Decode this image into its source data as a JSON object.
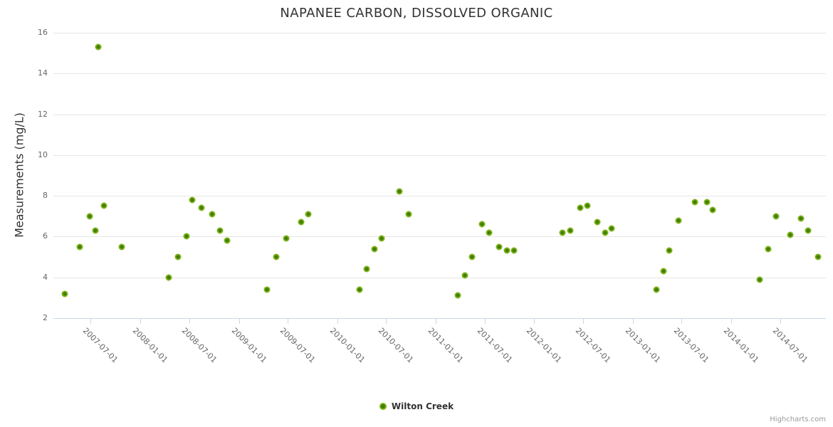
{
  "chart": {
    "title": "NAPANEE CARBON, DISSOLVED ORGANIC",
    "credits": "Highcharts.com"
  },
  "chart_data": {
    "type": "scatter",
    "title": "NAPANEE CARBON, DISSOLVED ORGANIC",
    "xlabel": "",
    "ylabel": "Measurements (mg/L)",
    "grid": "horizontal",
    "legend_position": "bottom-center",
    "x_axis": {
      "type": "datetime",
      "min": "2007-02-13",
      "max": "2014-12-18",
      "label_rotation_deg": 45,
      "ticks": [
        "2007-07-01",
        "2008-01-01",
        "2008-07-01",
        "2009-01-01",
        "2009-07-01",
        "2010-01-01",
        "2010-07-01",
        "2011-01-01",
        "2011-07-01",
        "2012-01-01",
        "2012-07-01",
        "2013-01-01",
        "2013-07-01",
        "2014-01-01",
        "2014-07-01"
      ]
    },
    "y_axis": {
      "min": 2,
      "max": 16,
      "ticks": [
        2,
        4,
        6,
        8,
        10,
        12,
        14,
        16
      ]
    },
    "series": [
      {
        "name": "Wilton Creek",
        "marker": {
          "fill": "#3f7d05",
          "line": "#7db117"
        },
        "data": [
          {
            "x": "2007-03-27",
            "y": 3.2
          },
          {
            "x": "2007-05-21",
            "y": 5.5
          },
          {
            "x": "2007-06-28",
            "y": 7.0
          },
          {
            "x": "2007-07-19",
            "y": 6.3
          },
          {
            "x": "2007-07-30",
            "y": 15.3
          },
          {
            "x": "2007-08-19",
            "y": 7.5
          },
          {
            "x": "2007-10-24",
            "y": 5.5
          },
          {
            "x": "2008-04-15",
            "y": 4.0
          },
          {
            "x": "2008-05-20",
            "y": 5.0
          },
          {
            "x": "2008-06-22",
            "y": 6.0
          },
          {
            "x": "2008-07-12",
            "y": 7.8
          },
          {
            "x": "2008-08-16",
            "y": 7.4
          },
          {
            "x": "2008-09-24",
            "y": 7.1
          },
          {
            "x": "2008-10-23",
            "y": 6.3
          },
          {
            "x": "2008-11-19",
            "y": 5.8
          },
          {
            "x": "2009-04-16",
            "y": 3.4
          },
          {
            "x": "2009-05-20",
            "y": 5.0
          },
          {
            "x": "2009-06-26",
            "y": 5.9
          },
          {
            "x": "2009-08-19",
            "y": 6.7
          },
          {
            "x": "2009-09-16",
            "y": 7.1
          },
          {
            "x": "2010-03-24",
            "y": 3.4
          },
          {
            "x": "2010-04-20",
            "y": 4.4
          },
          {
            "x": "2010-05-18",
            "y": 5.4
          },
          {
            "x": "2010-06-14",
            "y": 5.9
          },
          {
            "x": "2010-08-18",
            "y": 8.2
          },
          {
            "x": "2010-09-22",
            "y": 7.1
          },
          {
            "x": "2011-03-23",
            "y": 3.1
          },
          {
            "x": "2011-04-20",
            "y": 4.1
          },
          {
            "x": "2011-05-16",
            "y": 5.0
          },
          {
            "x": "2011-06-21",
            "y": 6.6
          },
          {
            "x": "2011-07-17",
            "y": 6.2
          },
          {
            "x": "2011-08-24",
            "y": 5.5
          },
          {
            "x": "2011-09-21",
            "y": 5.3
          },
          {
            "x": "2011-10-18",
            "y": 5.3
          },
          {
            "x": "2012-04-15",
            "y": 6.2
          },
          {
            "x": "2012-05-15",
            "y": 6.3
          },
          {
            "x": "2012-06-20",
            "y": 7.4
          },
          {
            "x": "2012-07-17",
            "y": 7.5
          },
          {
            "x": "2012-08-22",
            "y": 6.7
          },
          {
            "x": "2012-09-21",
            "y": 6.2
          },
          {
            "x": "2012-10-15",
            "y": 6.4
          },
          {
            "x": "2013-03-30",
            "y": 3.4
          },
          {
            "x": "2013-04-24",
            "y": 4.3
          },
          {
            "x": "2013-05-16",
            "y": 5.3
          },
          {
            "x": "2013-06-20",
            "y": 6.8
          },
          {
            "x": "2013-08-19",
            "y": 7.7
          },
          {
            "x": "2013-10-02",
            "y": 7.7
          },
          {
            "x": "2013-10-23",
            "y": 7.3
          },
          {
            "x": "2014-04-17",
            "y": 3.9
          },
          {
            "x": "2014-05-18",
            "y": 5.4
          },
          {
            "x": "2014-06-16",
            "y": 7.0
          },
          {
            "x": "2014-08-07",
            "y": 6.1
          },
          {
            "x": "2014-09-16",
            "y": 6.9
          },
          {
            "x": "2014-10-14",
            "y": 6.3
          },
          {
            "x": "2014-11-19",
            "y": 5.0
          }
        ]
      }
    ]
  },
  "colors": {
    "title": "#333333",
    "axis_label": "#666666",
    "gridline": "#e6e6e6",
    "axis_line": "#ccd6eb",
    "marker_fill": "#3f7d05",
    "marker_line": "#7db117",
    "legend_text": "#333333",
    "credits": "#999999",
    "background": "#ffffff"
  }
}
